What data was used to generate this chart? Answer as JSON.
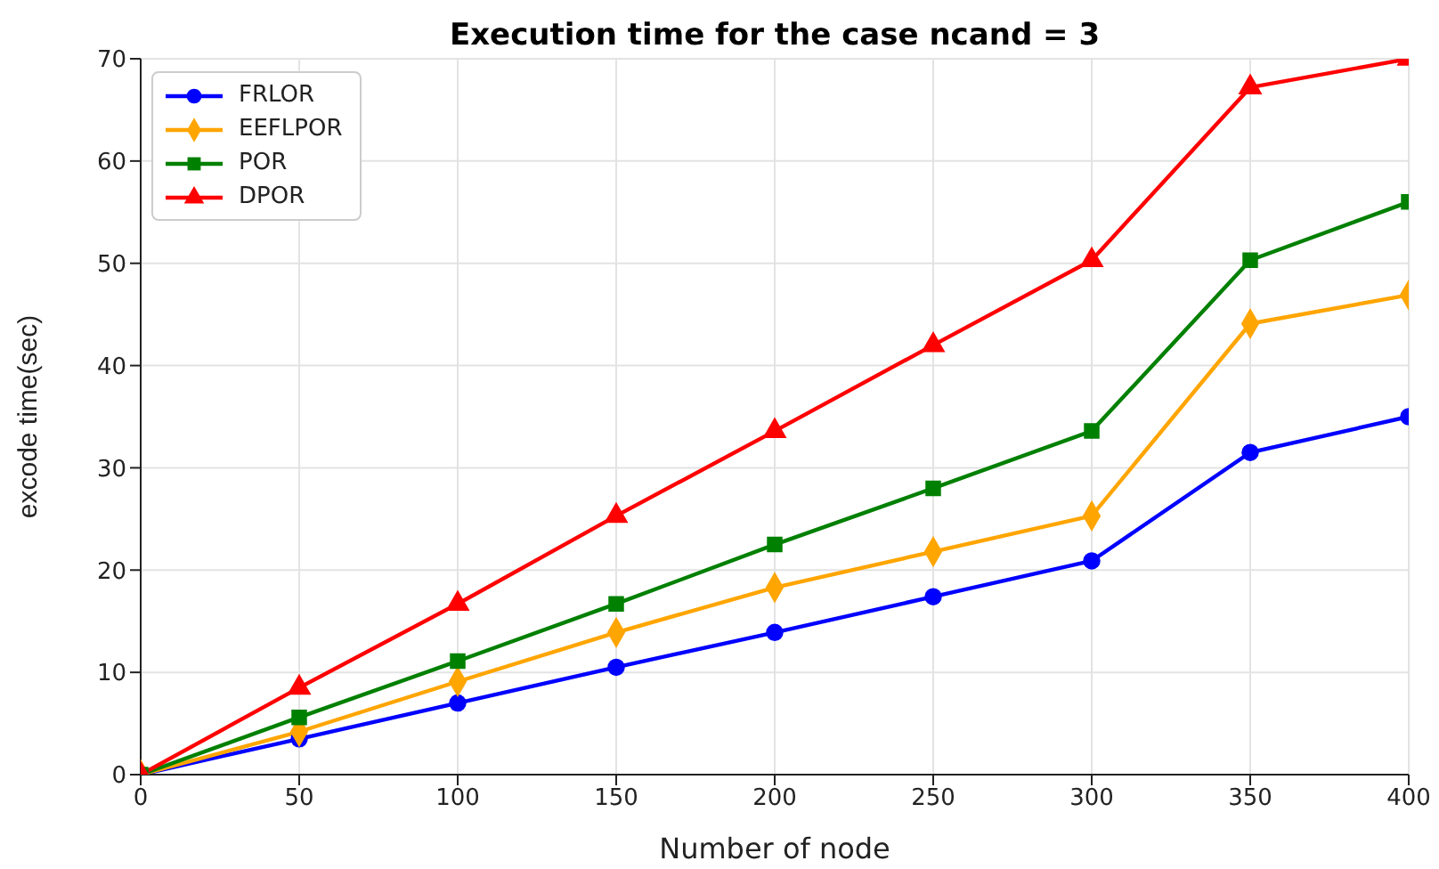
{
  "chart_data": {
    "type": "line",
    "title": "Execution time for the case ncand = 3",
    "xlabel": "Number of node",
    "ylabel": "excode time(sec)",
    "x": [
      0,
      50,
      100,
      150,
      200,
      250,
      300,
      350,
      400
    ],
    "series": [
      {
        "name": "FRLOR",
        "color": "#0000ff",
        "marker": "circle",
        "values": [
          0,
          3.5,
          7,
          10.5,
          13.9,
          17.4,
          20.9,
          31.5,
          35
        ]
      },
      {
        "name": "EEFLPOR",
        "color": "#ffa500",
        "marker": "diamond",
        "values": [
          0,
          4.2,
          9.1,
          13.9,
          18.3,
          21.8,
          25.3,
          44.1,
          46.9
        ]
      },
      {
        "name": "POR",
        "color": "#008000",
        "marker": "square",
        "values": [
          0,
          5.6,
          11.1,
          16.7,
          22.5,
          28,
          33.6,
          50.3,
          56
        ]
      },
      {
        "name": "DPOR",
        "color": "#ff0000",
        "marker": "triangle",
        "values": [
          0,
          8.5,
          16.7,
          25.3,
          33.6,
          42,
          50.3,
          67.2,
          70
        ]
      }
    ],
    "xlim": [
      0,
      400
    ],
    "xticks": [
      0,
      50,
      100,
      150,
      200,
      250,
      300,
      350,
      400
    ],
    "ylim": [
      0,
      70
    ],
    "yticks": [
      0,
      10,
      20,
      30,
      40,
      50,
      60,
      70
    ],
    "grid": true,
    "legend": "top left",
    "line_style": "solid"
  }
}
